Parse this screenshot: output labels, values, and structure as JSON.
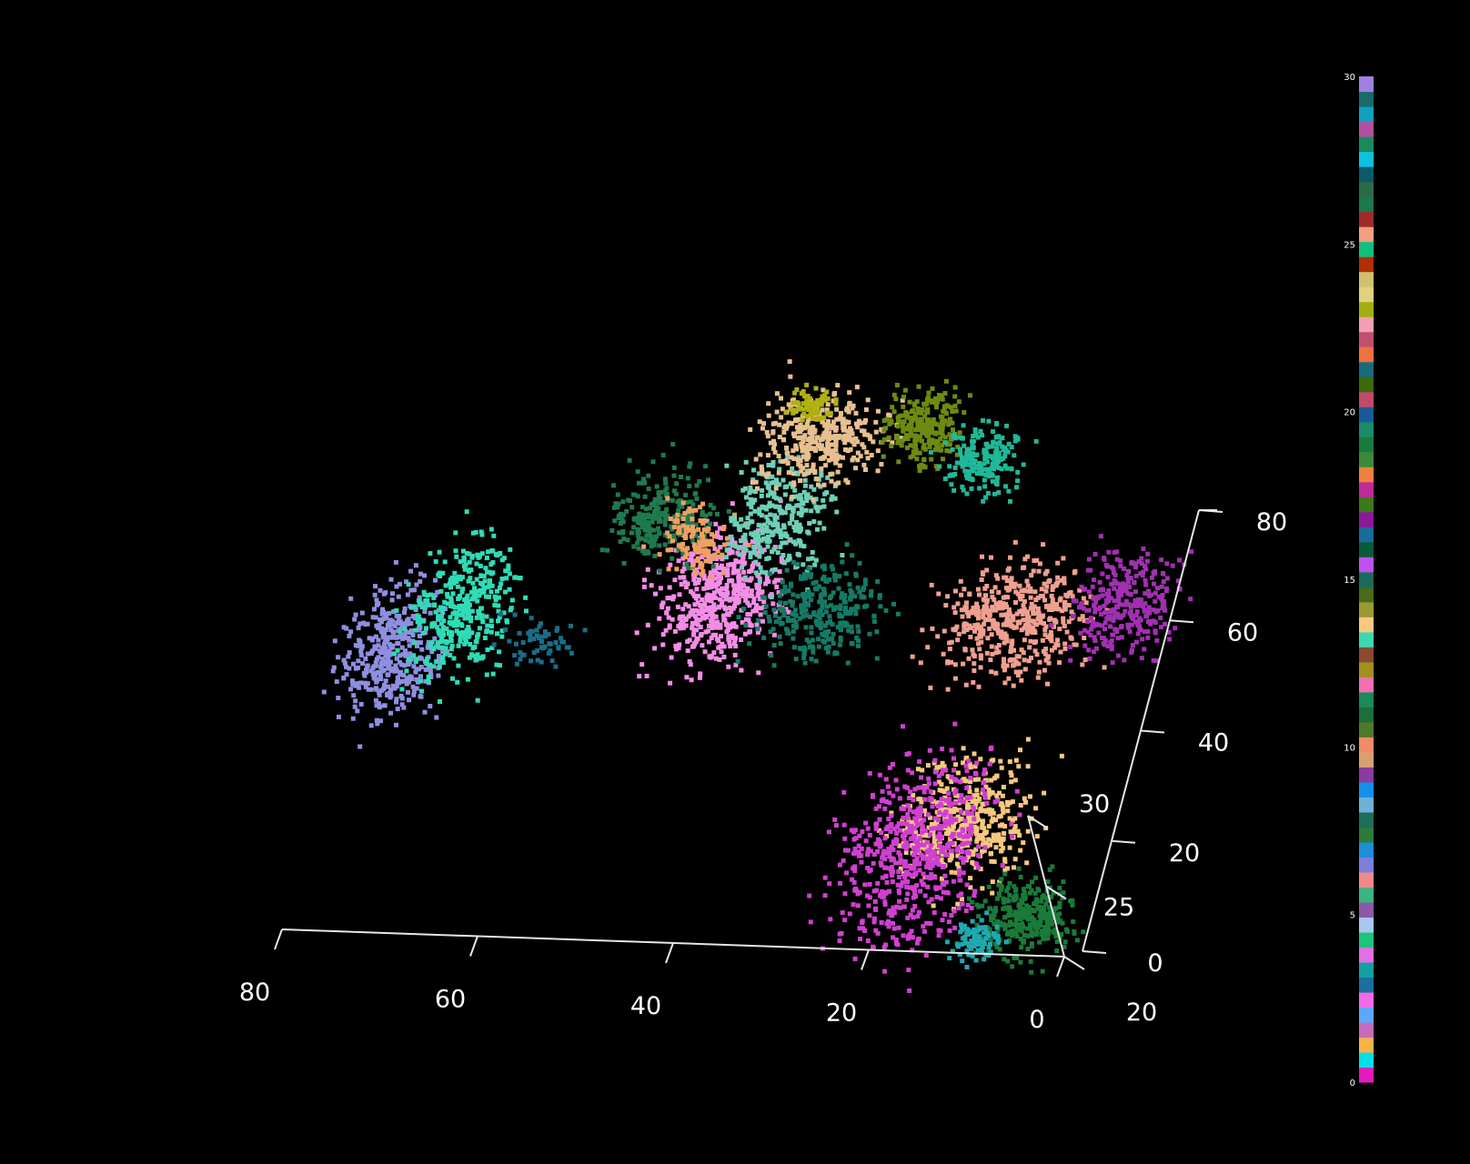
{
  "chart_data": {
    "type": "scatter",
    "title": "",
    "xlabel": "",
    "ylabel": "",
    "zlabel": "",
    "background": "#000000",
    "grid": false,
    "x_axis": {
      "ticks": [
        80,
        60,
        40,
        20,
        0
      ]
    },
    "y_axis": {
      "ticks": [
        20,
        25,
        30
      ]
    },
    "z_axis": {
      "ticks": [
        0,
        20,
        40,
        60,
        80
      ]
    },
    "colorbar": {
      "ticks": [
        0,
        5,
        10,
        15,
        20,
        25,
        30
      ],
      "range": [
        0,
        30
      ],
      "colors": [
        "#e31abc",
        "#00e0e8",
        "#f8b24a",
        "#c86bbd",
        "#5aa8ff",
        "#f26be8",
        "#1d6fa0",
        "#15a0a0",
        "#e36ee6",
        "#1cc47c",
        "#a7c7ee",
        "#8b59a6",
        "#3cb383",
        "#f08a8a",
        "#7d7fd8",
        "#1c8fd8",
        "#2d7a3c",
        "#1e6e5a",
        "#6fb0d8",
        "#1490e8",
        "#8b3aa0",
        "#d8a070",
        "#f08a6a",
        "#4f7a2a",
        "#1c6e3c",
        "#1c8a5a",
        "#f070b0",
        "#a09020",
        "#8b4a30",
        "#3cd8b0",
        "#f8c880",
        "#9a9a30",
        "#486a1a",
        "#1a6a5a",
        "#c050f0",
        "#0a5a3a",
        "#1a6a9a",
        "#8a1a9a",
        "#3a7a1a",
        "#c02a9a",
        "#f08040",
        "#3a8a3a",
        "#1a7a3a",
        "#1a8a6a",
        "#1a5a9a",
        "#c04a6a",
        "#3a6a0a",
        "#1a6a7a",
        "#f07040",
        "#c05070",
        "#f0a0b0",
        "#a0b010",
        "#e0d080",
        "#d0c070",
        "#b03000",
        "#10c080",
        "#f0a080",
        "#a02a2a",
        "#1a7a4a",
        "#2a6a4a",
        "#0a5a6a",
        "#10c0e0",
        "#1a8a5a",
        "#b050a0",
        "#10a0c0",
        "#1a6a6a",
        "#a080e0"
      ]
    },
    "series": [
      {
        "color": "#8f8fe0",
        "center": [
          76,
          22,
          49
        ],
        "spread": [
          4,
          2,
          10
        ],
        "n": 420
      },
      {
        "color": "#2fdcb6",
        "center": [
          69,
          24,
          55
        ],
        "spread": [
          4,
          2,
          10
        ],
        "n": 380
      },
      {
        "color": "#1a6e88",
        "center": [
          59,
          26,
          44
        ],
        "spread": [
          3,
          2,
          3
        ],
        "n": 60
      },
      {
        "color": "#f48de8",
        "center": [
          42,
          27,
          53
        ],
        "spread": [
          5,
          2,
          10
        ],
        "n": 520
      },
      {
        "color": "#1f7a4e",
        "center": [
          49,
          29,
          64
        ],
        "spread": [
          4,
          2,
          6
        ],
        "n": 260
      },
      {
        "color": "#f0a060",
        "center": [
          45,
          28,
          62
        ],
        "spread": [
          3,
          2,
          4
        ],
        "n": 120
      },
      {
        "color": "#6fd0b8",
        "center": [
          37,
          29,
          65
        ],
        "spread": [
          4,
          2,
          8
        ],
        "n": 300
      },
      {
        "color": "#157a66",
        "center": [
          31,
          28,
          49
        ],
        "spread": [
          5,
          2,
          7
        ],
        "n": 300
      },
      {
        "color": "#e8c090",
        "center": [
          34,
          31,
          76
        ],
        "spread": [
          5,
          2,
          6
        ],
        "n": 380
      },
      {
        "color": "#b0b010",
        "center": [
          36,
          31,
          82
        ],
        "spread": [
          2,
          1,
          2
        ],
        "n": 70
      },
      {
        "color": "#6e8a10",
        "center": [
          24,
          31,
          79
        ],
        "spread": [
          3,
          2,
          5
        ],
        "n": 260
      },
      {
        "color": "#20b898",
        "center": [
          17,
          31,
          73
        ],
        "spread": [
          3,
          2,
          4
        ],
        "n": 200
      },
      {
        "color": "#f0a090",
        "center": [
          13,
          24,
          56
        ],
        "spread": [
          6,
          2,
          8
        ],
        "n": 480
      },
      {
        "color": "#a030b0",
        "center": [
          2,
          24,
          60
        ],
        "spread": [
          4,
          2,
          7
        ],
        "n": 320
      },
      {
        "color": "#f8c880",
        "center": [
          13,
          22,
          22
        ],
        "spread": [
          5,
          2,
          9
        ],
        "n": 460
      },
      {
        "color": "#d040d0",
        "center": [
          18,
          21,
          17
        ],
        "spread": [
          6,
          2,
          14
        ],
        "n": 620
      },
      {
        "color": "#1a7a3a",
        "center": [
          5,
          21,
          6
        ],
        "spread": [
          4,
          2,
          5
        ],
        "n": 320
      },
      {
        "color": "#20a8b0",
        "center": [
          9,
          21,
          1
        ],
        "spread": [
          2,
          1,
          3
        ],
        "n": 90
      }
    ]
  }
}
